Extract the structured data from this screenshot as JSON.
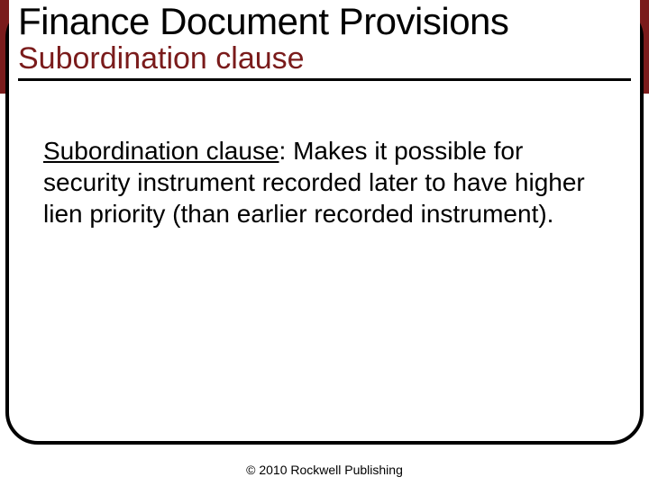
{
  "colors": {
    "header_background": "#7a1b1b",
    "subtitle_color": "#7a1b1b",
    "border_color": "#000000",
    "text_color": "#000000",
    "background": "#ffffff"
  },
  "layout": {
    "slide_width": 720,
    "slide_height": 540,
    "border_radius": 36,
    "border_width": 4
  },
  "typography": {
    "title_fontsize": 42,
    "subtitle_fontsize": 34,
    "body_fontsize": 28,
    "footer_fontsize": 14,
    "font_family": "Arial"
  },
  "header": {
    "title": "Finance Document Provisions",
    "subtitle": "Subordination clause"
  },
  "body": {
    "term": "Subordination clause",
    "definition": ": Makes it possible for security instrument recorded later to have higher lien priority (than earlier recorded instrument)."
  },
  "footer": {
    "copyright": "© 2010 Rockwell Publishing"
  }
}
